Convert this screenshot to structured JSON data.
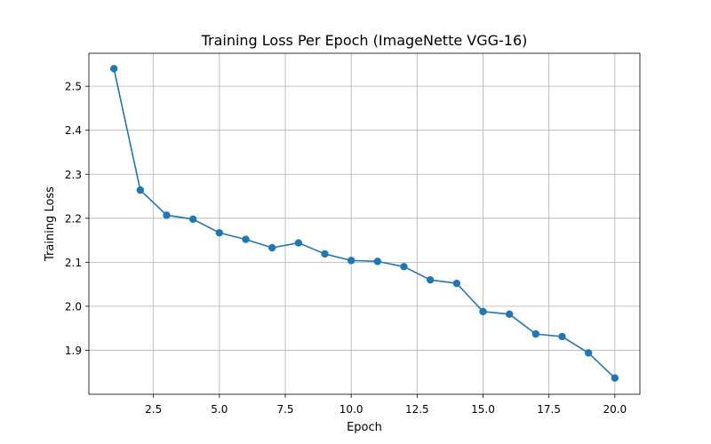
{
  "chart_data": {
    "type": "line",
    "title": "Training Loss Per Epoch (ImageNette VGG-16)",
    "xlabel": "Epoch",
    "ylabel": "Training Loss",
    "xlim": [
      0.05,
      20.95
    ],
    "ylim": [
      1.8,
      2.575
    ],
    "grid": true,
    "marker": "circle",
    "x_ticks": [
      2.5,
      5.0,
      7.5,
      10.0,
      12.5,
      15.0,
      17.5,
      20.0
    ],
    "x_tick_labels": [
      "2.5",
      "5.0",
      "7.5",
      "10.0",
      "12.5",
      "15.0",
      "17.5",
      "20.0"
    ],
    "y_ticks": [
      1.9,
      2.0,
      2.1,
      2.2,
      2.3,
      2.4,
      2.5
    ],
    "y_tick_labels": [
      "1.9",
      "2.0",
      "2.1",
      "2.2",
      "2.3",
      "2.4",
      "2.5"
    ],
    "series": [
      {
        "color": "#1f77b4",
        "x": [
          1,
          2,
          3,
          4,
          5,
          6,
          7,
          8,
          9,
          10,
          11,
          12,
          13,
          14,
          15,
          16,
          17,
          18,
          19,
          20
        ],
        "values": [
          2.54,
          2.264,
          2.207,
          2.198,
          2.167,
          2.152,
          2.133,
          2.144,
          2.119,
          2.104,
          2.102,
          2.09,
          2.06,
          2.052,
          1.988,
          1.982,
          1.937,
          1.931,
          1.894,
          1.837
        ]
      }
    ]
  }
}
